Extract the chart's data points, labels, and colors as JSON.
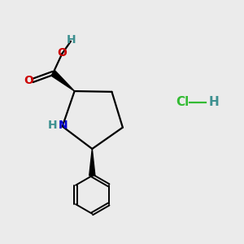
{
  "bg_color": "#ebebeb",
  "atom_colors": {
    "C": "#000000",
    "H": "#3d9090",
    "O": "#cc0000",
    "N": "#0000cc",
    "Cl": "#33bb33"
  },
  "bond_color": "#000000",
  "hcl_color": "#33bb33",
  "hcl_h_color": "#3d9090",
  "figsize": [
    3.0,
    3.0
  ],
  "dpi": 100
}
